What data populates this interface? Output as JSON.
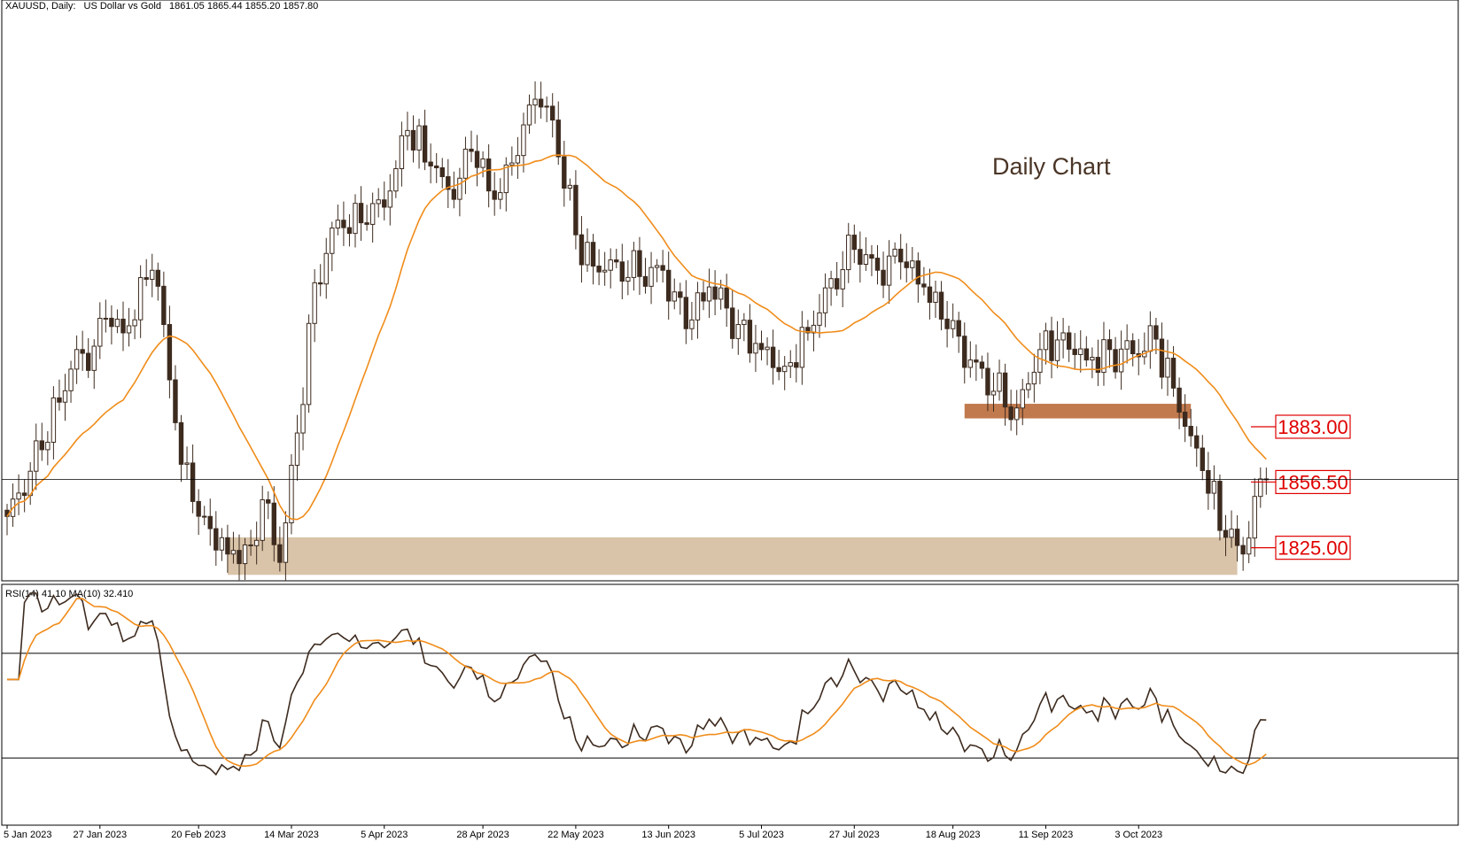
{
  "header": {
    "symbol": "XAUUSD, Daily:",
    "description": "US Dollar vs Gold",
    "ohlc": "1861.05 1865.44 1855.20 1857.80"
  },
  "annotation": "Daily Chart",
  "rsi": {
    "label": "RSI(14) 41.10 MA(10) 32.410",
    "upper": 70,
    "lower": 30,
    "ylim": [
      5,
      95
    ]
  },
  "colors": {
    "candle": "#3d2b1f",
    "ma": "#f08c1a",
    "zone_resistance": "#c17a4e",
    "zone_support": "#d9c4a9",
    "level": "#e00000"
  },
  "chart_data": {
    "type": "candlestick",
    "title": "XAUUSD, Daily: US Dollar vs Gold",
    "ylim": [
      1810,
      2085
    ],
    "x_ticks": [
      "5 Jan 2023",
      "27 Jan 2023",
      "20 Feb 2023",
      "14 Mar 2023",
      "5 Apr 2023",
      "28 Apr 2023",
      "22 May 2023",
      "13 Jun 2023",
      "5 Jul 2023",
      "27 Jul 2023",
      "18 Aug 2023",
      "11 Sep 2023",
      "3 Oct 2023"
    ],
    "close_anchors": [
      [
        0,
        1840
      ],
      [
        6,
        1872
      ],
      [
        12,
        1920
      ],
      [
        14,
        1910
      ],
      [
        17,
        1935
      ],
      [
        20,
        1928
      ],
      [
        25,
        1958
      ],
      [
        27,
        1932
      ],
      [
        30,
        1865
      ],
      [
        34,
        1840
      ],
      [
        38,
        1822
      ],
      [
        42,
        1826
      ],
      [
        44,
        1848
      ],
      [
        47,
        1818
      ],
      [
        50,
        1880
      ],
      [
        53,
        1952
      ],
      [
        57,
        1982
      ],
      [
        62,
        1980
      ],
      [
        66,
        1996
      ],
      [
        69,
        2025
      ],
      [
        73,
        2008
      ],
      [
        77,
        1992
      ],
      [
        80,
        2015
      ],
      [
        84,
        1992
      ],
      [
        88,
        2013
      ],
      [
        91,
        2040
      ],
      [
        94,
        2030
      ],
      [
        98,
        1975
      ],
      [
        101,
        1960
      ],
      [
        105,
        1962
      ],
      [
        109,
        1955
      ],
      [
        113,
        1958
      ],
      [
        117,
        1930
      ],
      [
        121,
        1950
      ],
      [
        126,
        1932
      ],
      [
        130,
        1920
      ],
      [
        134,
        1912
      ],
      [
        138,
        1928
      ],
      [
        142,
        1954
      ],
      [
        146,
        1968
      ],
      [
        150,
        1958
      ],
      [
        154,
        1962
      ],
      [
        158,
        1950
      ],
      [
        162,
        1930
      ],
      [
        166,
        1915
      ],
      [
        170,
        1900
      ],
      [
        174,
        1892
      ],
      [
        178,
        1920
      ],
      [
        182,
        1928
      ],
      [
        186,
        1915
      ],
      [
        190,
        1920
      ],
      [
        194,
        1918
      ],
      [
        198,
        1925
      ],
      [
        202,
        1890
      ],
      [
        206,
        1862
      ],
      [
        210,
        1830
      ],
      [
        213,
        1822
      ],
      [
        216,
        1858
      ],
      [
        217,
        1857.8
      ]
    ],
    "ma_period": 21,
    "levels": [
      {
        "label": "1883.00",
        "value": 1883
      },
      {
        "label": "1856.50",
        "value": 1856.5
      },
      {
        "label": "1825.00",
        "value": 1825
      }
    ],
    "zones": [
      {
        "name": "resistance",
        "from": 1887,
        "to": 1894
      },
      {
        "name": "support",
        "from": 1812,
        "to": 1830
      }
    ],
    "current_price": 1857.8
  }
}
